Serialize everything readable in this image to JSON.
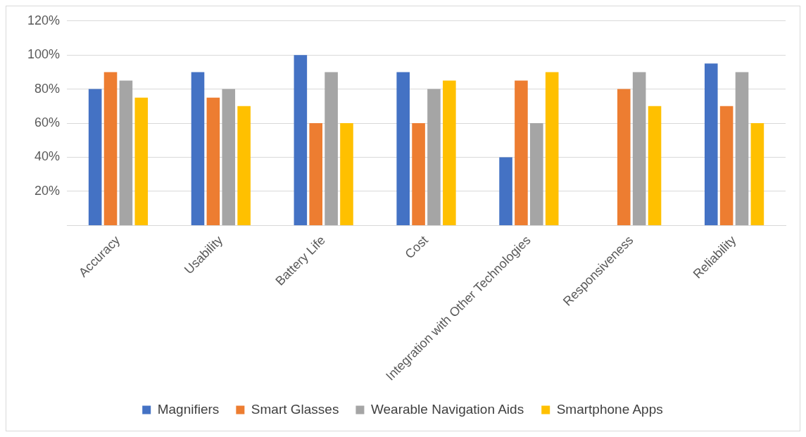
{
  "chart_data": {
    "type": "bar",
    "categories": [
      "Accuracy",
      "Usability",
      "Battery Life",
      "Cost",
      "Integration with Other Technologies",
      "Responsiveness",
      "Reliability"
    ],
    "series": [
      {
        "name": "Magnifiers",
        "color": "#4472c4",
        "values": [
          80,
          90,
          100,
          90,
          40,
          null,
          95
        ]
      },
      {
        "name": "Smart Glasses",
        "color": "#ed7d31",
        "values": [
          90,
          75,
          60,
          60,
          85,
          80,
          70
        ]
      },
      {
        "name": "Wearable Navigation Aids",
        "color": "#a5a5a5",
        "values": [
          85,
          80,
          90,
          80,
          60,
          90,
          90
        ]
      },
      {
        "name": "Smartphone Apps",
        "color": "#ffc000",
        "values": [
          75,
          70,
          60,
          85,
          90,
          70,
          60
        ]
      }
    ],
    "ylim": [
      0,
      120
    ],
    "yticks": [
      {
        "value": 20,
        "label": "20%"
      },
      {
        "value": 40,
        "label": "40%"
      },
      {
        "value": 60,
        "label": "60%"
      },
      {
        "value": 80,
        "label": "80%"
      },
      {
        "value": 100,
        "label": "100%"
      },
      {
        "value": 120,
        "label": "120%"
      }
    ],
    "grid": "y",
    "legend": "bottom"
  }
}
